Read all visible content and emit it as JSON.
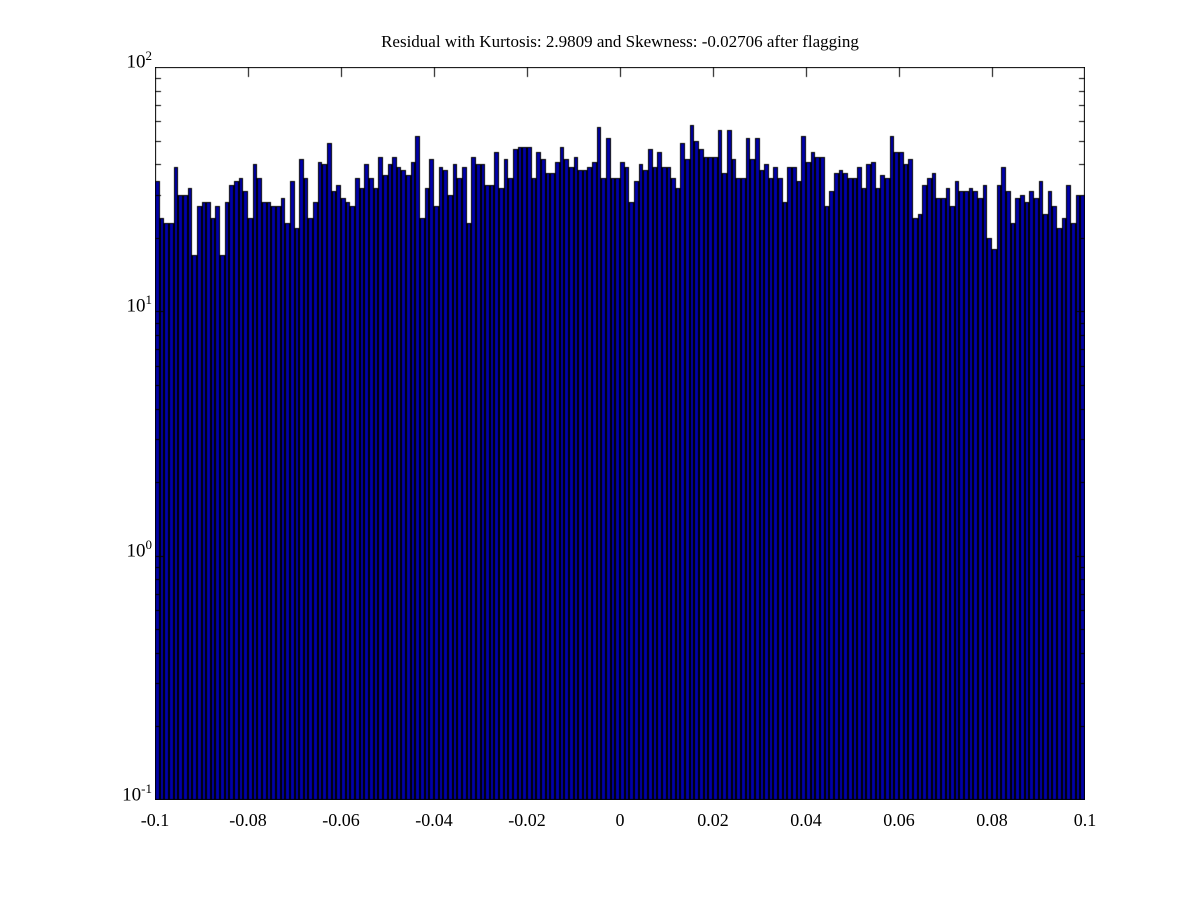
{
  "figure": {
    "background_color": "#ffffff",
    "text_color": "#000000"
  },
  "chart_data": {
    "type": "bar",
    "subtype": "histogram",
    "title": "Residual with Kurtosis: 2.9809 and Skewness: -0.02706 after flagging",
    "xlabel": "",
    "ylabel": "",
    "x_range": [
      -0.1,
      0.1
    ],
    "bins": 200,
    "bin_width": 0.001,
    "y_scale": "log",
    "ylim": [
      0.1,
      100
    ],
    "grid": false,
    "legend": "none",
    "bar_face_color": "#0000AA",
    "bar_edge_color": "#000000",
    "axis_color": "#000000",
    "x_ticks": [
      {
        "value": -0.1,
        "label": "-0.1"
      },
      {
        "value": -0.08,
        "label": "-0.08"
      },
      {
        "value": -0.06,
        "label": "-0.06"
      },
      {
        "value": -0.04,
        "label": "-0.04"
      },
      {
        "value": -0.02,
        "label": "-0.02"
      },
      {
        "value": 0,
        "label": "0"
      },
      {
        "value": 0.02,
        "label": "0.02"
      },
      {
        "value": 0.04,
        "label": "0.04"
      },
      {
        "value": 0.06,
        "label": "0.06"
      },
      {
        "value": 0.08,
        "label": "0.08"
      },
      {
        "value": 0.1,
        "label": "0.1"
      }
    ],
    "y_ticks": [
      {
        "value": 100,
        "base": "10",
        "exp": "2"
      },
      {
        "value": 10,
        "base": "10",
        "exp": "1"
      },
      {
        "value": 1,
        "base": "10",
        "exp": "0"
      },
      {
        "value": 0.1,
        "base": "10",
        "exp": "-1"
      }
    ],
    "counts": [
      34,
      24,
      23,
      23,
      39,
      30,
      30,
      32,
      17,
      27,
      28,
      28,
      24,
      27,
      17,
      28,
      33,
      34,
      35,
      31,
      24,
      40,
      35,
      28,
      28,
      27,
      27,
      29,
      23,
      34,
      22,
      42,
      35,
      24,
      28,
      41,
      40,
      49,
      31,
      33,
      29,
      28,
      27,
      35,
      32,
      40,
      35,
      32,
      43,
      36,
      40,
      43,
      39,
      38,
      36,
      41,
      52,
      24,
      32,
      42,
      27,
      39,
      38,
      30,
      40,
      35,
      39,
      23,
      43,
      40,
      40,
      33,
      33,
      45,
      32,
      42,
      35,
      46,
      47,
      47,
      47,
      35,
      45,
      42,
      37,
      37,
      41,
      47,
      42,
      39,
      43,
      38,
      38,
      39,
      41,
      57,
      35,
      51,
      35,
      35,
      41,
      39,
      28,
      34,
      40,
      38,
      46,
      39,
      45,
      39,
      39,
      35,
      32,
      49,
      42,
      58,
      50,
      46,
      43,
      43,
      43,
      55,
      37,
      55,
      42,
      35,
      35,
      51,
      42,
      51,
      38,
      40,
      35,
      39,
      35,
      28,
      39,
      39,
      34,
      52,
      41,
      45,
      43,
      43,
      27,
      31,
      37,
      38,
      37,
      35,
      35,
      39,
      32,
      40,
      41,
      32,
      36,
      35,
      52,
      45,
      45,
      40,
      42,
      24,
      25,
      33,
      35,
      37,
      29,
      29,
      32,
      27,
      34,
      31,
      31,
      32,
      31,
      29,
      33,
      20,
      18,
      33,
      39,
      31,
      23,
      29,
      30,
      28,
      31,
      29,
      34,
      25,
      31,
      27,
      22,
      24,
      33,
      23,
      30,
      30
    ]
  }
}
